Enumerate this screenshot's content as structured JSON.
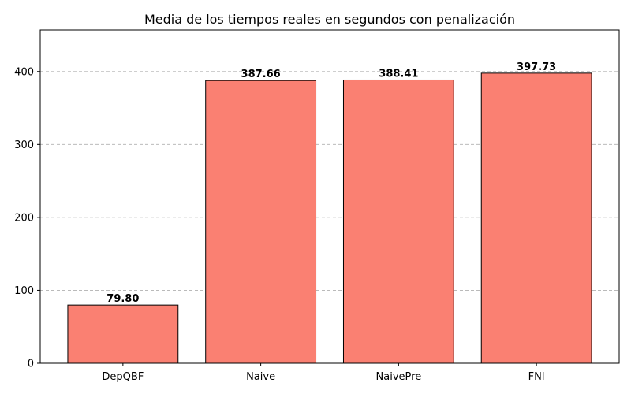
{
  "chart_data": {
    "type": "bar",
    "title": "Media de los tiempos reales en segundos con penalización",
    "xlabel": "",
    "ylabel": "",
    "categories": [
      "DepQBF",
      "Naive",
      "NaivePre",
      "FNI"
    ],
    "values": [
      79.8,
      387.66,
      388.41,
      397.73
    ],
    "value_labels": [
      "79.80",
      "387.66",
      "388.41",
      "397.73"
    ],
    "ylim": [
      0,
      457
    ],
    "yticks": [
      0,
      100,
      200,
      300,
      400
    ],
    "grid": true,
    "bar_color": "#fa8072",
    "edge_color": "#000000"
  }
}
